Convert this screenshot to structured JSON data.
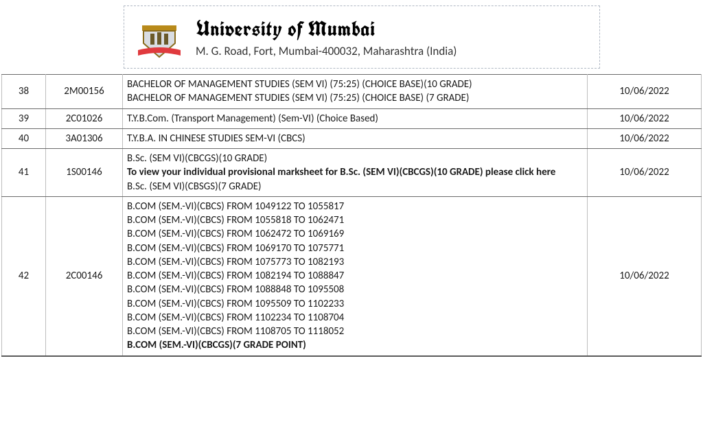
{
  "header": {
    "name": "University of Mumbai",
    "address": "M. G. Road, Fort, Mumbai-400032, Maharashtra (India)",
    "logo": {
      "ribbon_color": "#e03a3e",
      "shield_fill": "#d9dde2",
      "shield_stroke": "#8a6d1e",
      "top_bar": "#b88a1a"
    }
  },
  "table": {
    "rows": [
      {
        "sn": "38",
        "code": "2M00156",
        "date": "10/06/2022",
        "desc": [
          {
            "text": "BACHELOR OF MANAGEMENT STUDIES (SEM VI) (75:25) (CHOICE BASE)(10 GRADE)",
            "bold": false
          },
          {
            "text": "BACHELOR OF MANAGEMENT STUDIES (SEM VI) (75:25) (CHOICE BASE) (7 GRADE)",
            "bold": false
          }
        ]
      },
      {
        "sn": "39",
        "code": "2C01026",
        "date": "10/06/2022",
        "desc": [
          {
            "text": "T.Y.B.Com. (Transport Management) (Sem-VI) (Choice Based)",
            "bold": false
          }
        ]
      },
      {
        "sn": "40",
        "code": "3A01306",
        "date": "10/06/2022",
        "desc": [
          {
            "text": "T.Y.B.A. IN CHINESE STUDIES SEM-VI (CBCS)",
            "bold": false
          }
        ]
      },
      {
        "sn": "41",
        "code": "1S00146",
        "date": "10/06/2022",
        "desc": [
          {
            "text": "B.Sc. (SEM VI)(CBCGS)(10 GRADE)",
            "bold": false
          },
          {
            "text": "To view your individual provisional marksheet for B.Sc. (SEM VI)(CBCGS)(10 GRADE) please click here",
            "bold": true
          },
          {
            "text": "B.Sc. (SEM VI)(CBSGS)(7 GRADE)",
            "bold": false
          }
        ]
      },
      {
        "sn": "42",
        "code": "2C00146",
        "date": "10/06/2022",
        "desc": [
          {
            "text": "B.COM (SEM.-VI)(CBCS) FROM 1049122 TO 1055817",
            "bold": false
          },
          {
            "text": "B.COM (SEM.-VI)(CBCS) FROM 1055818 TO 1062471",
            "bold": false
          },
          {
            "text": "B.COM (SEM.-VI)(CBCS) FROM 1062472 TO 1069169",
            "bold": false
          },
          {
            "text": "B.COM (SEM.-VI)(CBCS) FROM 1069170 TO 1075771",
            "bold": false
          },
          {
            "text": "B.COM (SEM.-VI)(CBCS) FROM 1075773 TO 1082193",
            "bold": false
          },
          {
            "text": "B.COM (SEM.-VI)(CBCS) FROM 1082194 TO 1088847",
            "bold": false
          },
          {
            "text": "B.COM (SEM.-VI)(CBCS) FROM 1088848 TO 1095508",
            "bold": false
          },
          {
            "text": "B.COM (SEM.-VI)(CBCS) FROM 1095509 TO 1102233",
            "bold": false
          },
          {
            "text": "B.COM (SEM.-VI)(CBCS) FROM 1102234 TO 1108704",
            "bold": false
          },
          {
            "text": "B.COM (SEM.-VI)(CBCS) FROM 1108705 TO 1118052",
            "bold": false
          },
          {
            "text": "B.COM (SEM.-VI)(CBCGS)(7 GRADE POINT)",
            "bold": true
          }
        ]
      }
    ]
  }
}
